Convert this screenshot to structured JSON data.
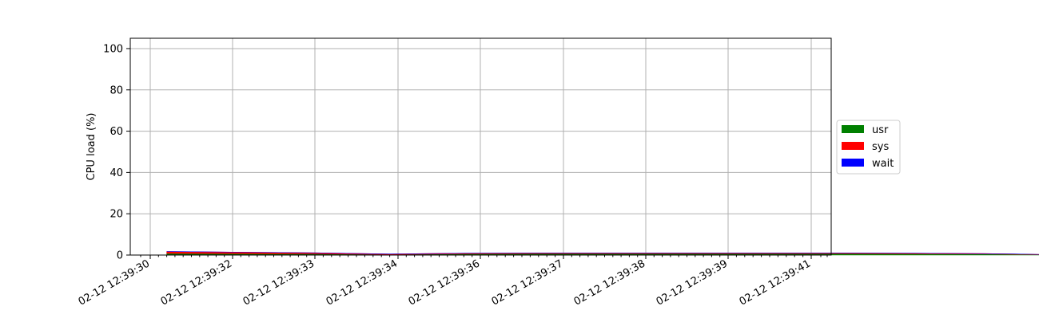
{
  "chart_data": {
    "type": "area",
    "stacked": true,
    "title": "",
    "xlabel": "",
    "ylabel": "CPU load (%)",
    "ylim": [
      0,
      105
    ],
    "yticks": [
      0,
      20,
      40,
      60,
      80,
      100
    ],
    "xticks": [
      "02-12 12:39:30",
      "02-12 12:39:32",
      "02-12 12:39:33",
      "02-12 12:39:34",
      "02-12 12:39:36",
      "02-12 12:39:37",
      "02-12 12:39:38",
      "02-12 12:39:39",
      "02-12 12:39:41"
    ],
    "x": [
      "12:39:30.2",
      "12:39:31.1",
      "12:39:32.0",
      "12:39:32.9",
      "12:39:33.8",
      "12:39:34.7",
      "12:39:35.6",
      "12:39:36.5",
      "12:39:37.4",
      "12:39:38.3",
      "12:39:39.2",
      "12:39:40.1",
      "12:39:41.0"
    ],
    "series": [
      {
        "name": "usr",
        "color": "#008000",
        "values": [
          0.8,
          0.7,
          0.6,
          0.3,
          0.6,
          0.7,
          0.7,
          0.7,
          0.7,
          0.7,
          0.6,
          0.5,
          0.1
        ]
      },
      {
        "name": "sys",
        "color": "#ff0000",
        "values": [
          0.9,
          0.7,
          0.5,
          0.2,
          0.3,
          0.3,
          0.3,
          0.3,
          0.3,
          0.3,
          0.3,
          0.2,
          0.1
        ]
      },
      {
        "name": "wait",
        "color": "#0000ff",
        "values": [
          0,
          0,
          0,
          0,
          0,
          0,
          0,
          0,
          0,
          0,
          0,
          0,
          0
        ]
      }
    ],
    "grid": true,
    "legend": "right"
  }
}
